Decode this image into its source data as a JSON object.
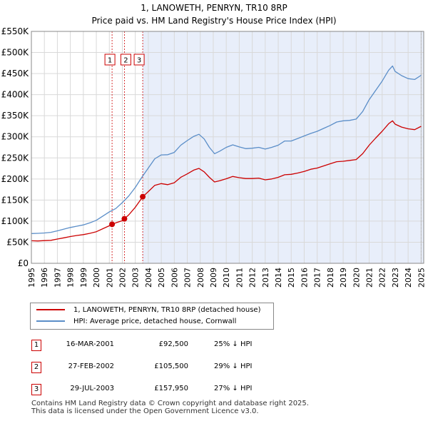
{
  "header": {
    "title_line1": "1, LANOWETH, PENRYN, TR10 8RP",
    "title_line2": "Price paid vs. HM Land Registry's House Price Index (HPI)"
  },
  "chart_data": {
    "type": "line",
    "xlim": [
      1995,
      2025.2
    ],
    "ylim": [
      0,
      550000
    ],
    "y_ticks": [
      0,
      50000,
      100000,
      150000,
      200000,
      250000,
      300000,
      350000,
      400000,
      450000,
      500000,
      550000
    ],
    "y_tick_labels": [
      "£0",
      "£50K",
      "£100K",
      "£150K",
      "£200K",
      "£250K",
      "£300K",
      "£350K",
      "£400K",
      "£450K",
      "£500K",
      "£550K"
    ],
    "x_ticks": [
      1995,
      1996,
      1997,
      1998,
      1999,
      2000,
      2001,
      2002,
      2003,
      2004,
      2005,
      2006,
      2007,
      2008,
      2009,
      2010,
      2011,
      2012,
      2013,
      2014,
      2015,
      2016,
      2017,
      2018,
      2019,
      2020,
      2021,
      2022,
      2023,
      2024,
      2025
    ],
    "series": [
      {
        "name": "1, LANOWETH, PENRYN, TR10 8RP (detached house)",
        "color": "#cc0000",
        "points": [
          [
            1995.0,
            53500
          ],
          [
            1995.5,
            53000
          ],
          [
            1996.0,
            53800
          ],
          [
            1996.5,
            54500
          ],
          [
            1997.0,
            57500
          ],
          [
            1997.5,
            60500
          ],
          [
            1998.0,
            63500
          ],
          [
            1998.5,
            66000
          ],
          [
            1999.0,
            68000
          ],
          [
            1999.5,
            71000
          ],
          [
            2000.0,
            75000
          ],
          [
            2000.5,
            82000
          ],
          [
            2001.0,
            89000
          ],
          [
            2001.21,
            92500
          ],
          [
            2001.5,
            96000
          ],
          [
            2002.0,
            101000
          ],
          [
            2002.16,
            105500
          ],
          [
            2002.5,
            115000
          ],
          [
            2003.0,
            133000
          ],
          [
            2003.57,
            157950
          ],
          [
            2004.0,
            170000
          ],
          [
            2004.5,
            185000
          ],
          [
            2005.0,
            189000
          ],
          [
            2005.5,
            186500
          ],
          [
            2006.0,
            191000
          ],
          [
            2006.5,
            204000
          ],
          [
            2007.0,
            212000
          ],
          [
            2007.5,
            221000
          ],
          [
            2007.9,
            225000
          ],
          [
            2008.3,
            217000
          ],
          [
            2008.7,
            204000
          ],
          [
            2009.1,
            193000
          ],
          [
            2009.5,
            196000
          ],
          [
            2010.0,
            200500
          ],
          [
            2010.5,
            206000
          ],
          [
            2011.0,
            203000
          ],
          [
            2011.5,
            201000
          ],
          [
            2012.0,
            201000
          ],
          [
            2012.5,
            202000
          ],
          [
            2013.0,
            198000
          ],
          [
            2013.5,
            200000
          ],
          [
            2014.0,
            204000
          ],
          [
            2014.5,
            210000
          ],
          [
            2015.0,
            211000
          ],
          [
            2015.5,
            214000
          ],
          [
            2016.0,
            218000
          ],
          [
            2016.5,
            223000
          ],
          [
            2017.0,
            226000
          ],
          [
            2017.5,
            231000
          ],
          [
            2018.0,
            236000
          ],
          [
            2018.5,
            241000
          ],
          [
            2019.0,
            242000
          ],
          [
            2019.5,
            244000
          ],
          [
            2020.0,
            246000
          ],
          [
            2020.5,
            260000
          ],
          [
            2021.0,
            280000
          ],
          [
            2021.5,
            297000
          ],
          [
            2022.0,
            313000
          ],
          [
            2022.5,
            331000
          ],
          [
            2022.8,
            338000
          ],
          [
            2023.0,
            330000
          ],
          [
            2023.5,
            323000
          ],
          [
            2024.0,
            319000
          ],
          [
            2024.5,
            317000
          ],
          [
            2025.0,
            325000
          ]
        ]
      },
      {
        "name": "HPI: Average price, detached house, Cornwall",
        "color": "#5b8ec8",
        "points": [
          [
            1995.0,
            70500
          ],
          [
            1995.5,
            71000
          ],
          [
            1996.0,
            72000
          ],
          [
            1996.5,
            73500
          ],
          [
            1997.0,
            77000
          ],
          [
            1997.5,
            81000
          ],
          [
            1998.0,
            85000
          ],
          [
            1998.5,
            88000
          ],
          [
            1999.0,
            91000
          ],
          [
            1999.5,
            96000
          ],
          [
            2000.0,
            102000
          ],
          [
            2000.5,
            112000
          ],
          [
            2001.0,
            122000
          ],
          [
            2001.5,
            130000
          ],
          [
            2002.0,
            144000
          ],
          [
            2002.5,
            160000
          ],
          [
            2003.0,
            180000
          ],
          [
            2003.5,
            204000
          ],
          [
            2004.0,
            226000
          ],
          [
            2004.5,
            248000
          ],
          [
            2005.0,
            257000
          ],
          [
            2005.5,
            257500
          ],
          [
            2006.0,
            263000
          ],
          [
            2006.5,
            280000
          ],
          [
            2007.0,
            291000
          ],
          [
            2007.5,
            301000
          ],
          [
            2007.9,
            306000
          ],
          [
            2008.3,
            295000
          ],
          [
            2008.7,
            275000
          ],
          [
            2009.1,
            260000
          ],
          [
            2009.5,
            266000
          ],
          [
            2010.0,
            275000
          ],
          [
            2010.5,
            281000
          ],
          [
            2011.0,
            276000
          ],
          [
            2011.5,
            272000
          ],
          [
            2012.0,
            273000
          ],
          [
            2012.5,
            275000
          ],
          [
            2013.0,
            271000
          ],
          [
            2013.5,
            275000
          ],
          [
            2014.0,
            280000
          ],
          [
            2014.5,
            290000
          ],
          [
            2015.0,
            290000
          ],
          [
            2015.5,
            296000
          ],
          [
            2016.0,
            302000
          ],
          [
            2016.5,
            308000
          ],
          [
            2017.0,
            313000
          ],
          [
            2017.5,
            320000
          ],
          [
            2018.0,
            327000
          ],
          [
            2018.5,
            335000
          ],
          [
            2019.0,
            338000
          ],
          [
            2019.5,
            339000
          ],
          [
            2020.0,
            342000
          ],
          [
            2020.5,
            360000
          ],
          [
            2021.0,
            388000
          ],
          [
            2021.5,
            410000
          ],
          [
            2022.0,
            432000
          ],
          [
            2022.5,
            458000
          ],
          [
            2022.8,
            468000
          ],
          [
            2023.0,
            455000
          ],
          [
            2023.5,
            445000
          ],
          [
            2024.0,
            438000
          ],
          [
            2024.5,
            436000
          ],
          [
            2025.0,
            446000
          ]
        ]
      }
    ],
    "sales": [
      {
        "label": "1",
        "x": 2001.21,
        "price": 92500
      },
      {
        "label": "2",
        "x": 2002.16,
        "price": 105500
      },
      {
        "label": "3",
        "x": 2003.57,
        "price": 157950
      }
    ],
    "shade_from": 2003.57
  },
  "legend": {
    "property_label": "1, LANOWETH, PENRYN, TR10 8RP (detached house)",
    "hpi_label": "HPI: Average price, detached house, Cornwall",
    "property_color": "#cc0000",
    "hpi_color": "#5b8ec8"
  },
  "transactions": [
    {
      "num": "1",
      "date": "16-MAR-2001",
      "price": "£92,500",
      "hpi": "25% ↓ HPI"
    },
    {
      "num": "2",
      "date": "27-FEB-2002",
      "price": "£105,500",
      "hpi": "29% ↓ HPI"
    },
    {
      "num": "3",
      "date": "29-JUL-2003",
      "price": "£157,950",
      "hpi": "27% ↓ HPI"
    }
  ],
  "footer": {
    "line1": "Contains HM Land Registry data © Crown copyright and database right 2025.",
    "line2": "This data is licensed under the Open Government Licence v3.0."
  }
}
